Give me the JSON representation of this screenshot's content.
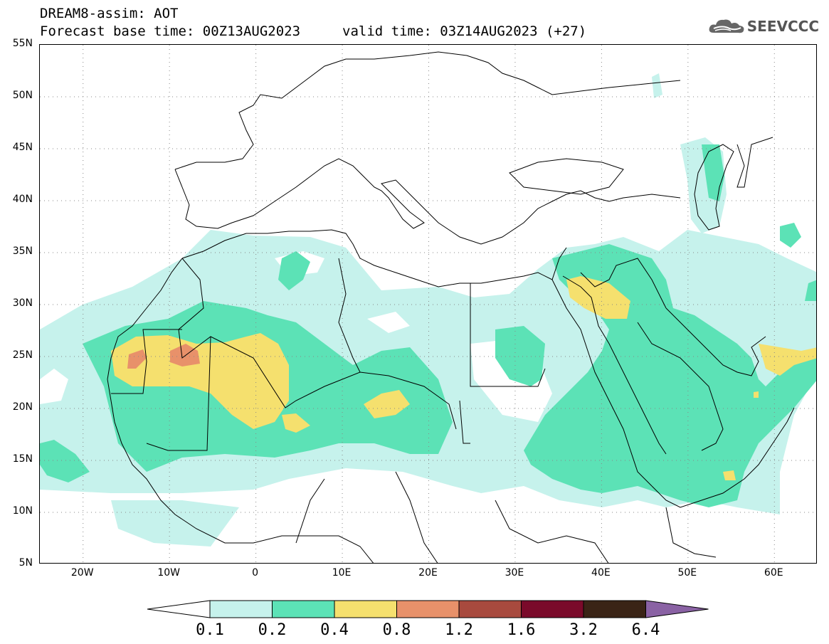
{
  "header": {
    "title_line1": "DREAM8-assim: AOT",
    "base_time": "Forecast base time: 00Z13AUG2023",
    "valid_time": "valid time: 03Z14AUG2023 (+27)"
  },
  "logo": {
    "text": "SEEVCCC",
    "icon": "cloud-logo-icon"
  },
  "map": {
    "lon_range": [
      -25,
      65
    ],
    "lat_range": [
      5,
      55
    ],
    "lat_labels": [
      "55N",
      "50N",
      "45N",
      "40N",
      "35N",
      "30N",
      "25N",
      "20N",
      "15N",
      "10N",
      "5N"
    ],
    "lon_labels": [
      "20W",
      "10W",
      "0",
      "10E",
      "20E",
      "30E",
      "40E",
      "50E",
      "60E"
    ],
    "grid": "dotted"
  },
  "colorbar": {
    "labels": [
      "0.1",
      "0.2",
      "0.4",
      "0.8",
      "1.2",
      "1.6",
      "3.2",
      "6.4"
    ],
    "colors": [
      "#c6f2ec",
      "#5ce2b6",
      "#f5e06e",
      "#e8916a",
      "#a84a3e",
      "#7a0a2a",
      "#3a2416",
      "#8a62a4"
    ],
    "under_color": "#ffffff"
  }
}
